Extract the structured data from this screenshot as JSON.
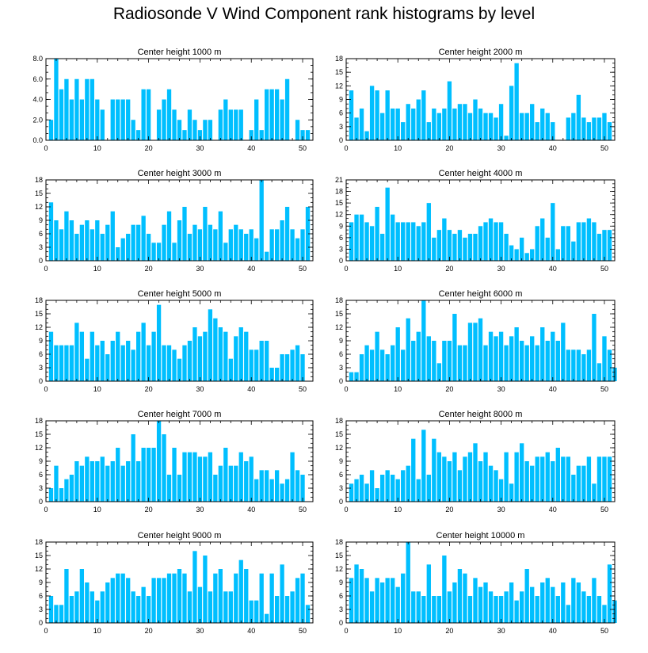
{
  "title": "Radiosonde V Wind Component rank histograms by level",
  "colors": {
    "bar": "#00BFFF",
    "axis": "#000000"
  },
  "chart_data": [
    {
      "type": "bar",
      "title": "Center height 1000 m",
      "xlim": [
        0,
        52
      ],
      "xticks": [
        "0",
        "10",
        "20",
        "30",
        "40",
        "50"
      ],
      "ylim": [
        0,
        8
      ],
      "yticks": [
        "0.0",
        "2.0",
        "4.0",
        "6.0",
        "8.0"
      ],
      "ytick_values": [
        0,
        2,
        4,
        6,
        8
      ],
      "values": [
        2,
        8,
        5,
        6,
        4,
        6,
        4,
        6,
        6,
        4,
        3,
        0,
        4,
        4,
        4,
        4,
        2,
        1,
        5,
        5,
        0,
        3,
        4,
        5,
        3,
        2,
        1,
        3,
        2,
        1,
        2,
        2,
        0,
        3,
        4,
        3,
        3,
        3,
        0,
        1,
        4,
        1,
        5,
        5,
        5,
        4,
        6,
        0,
        2,
        1,
        1
      ]
    },
    {
      "type": "bar",
      "title": "Center height 2000 m",
      "xlim": [
        0,
        52
      ],
      "xticks": [
        "0",
        "10",
        "20",
        "30",
        "40",
        "50"
      ],
      "ylim": [
        0,
        18
      ],
      "yticks": [
        "0",
        "3",
        "6",
        "9",
        "12",
        "15",
        "18"
      ],
      "ytick_values": [
        0,
        3,
        6,
        9,
        12,
        15,
        18
      ],
      "values": [
        11,
        5,
        7,
        2,
        12,
        11,
        6,
        11,
        7,
        7,
        4,
        8,
        7,
        9,
        11,
        4,
        7,
        6,
        7,
        13,
        7,
        8,
        8,
        6,
        9,
        7,
        6,
        6,
        5,
        8,
        1,
        12,
        17,
        6,
        6,
        8,
        4,
        7,
        6,
        4,
        0,
        0,
        5,
        6,
        10,
        5,
        4,
        5,
        5,
        6,
        4
      ]
    },
    {
      "type": "bar",
      "title": "Center height 3000 m",
      "xlim": [
        0,
        52
      ],
      "xticks": [
        "0",
        "10",
        "20",
        "30",
        "40",
        "50"
      ],
      "ylim": [
        0,
        18
      ],
      "yticks": [
        "0",
        "3",
        "6",
        "9",
        "12",
        "15",
        "18"
      ],
      "ytick_values": [
        0,
        3,
        6,
        9,
        12,
        15,
        18
      ],
      "values": [
        13,
        9,
        7,
        11,
        9,
        6,
        8,
        9,
        7,
        9,
        6,
        8,
        11,
        3,
        5,
        6,
        8,
        8,
        10,
        6,
        4,
        4,
        8,
        11,
        4,
        9,
        12,
        6,
        8,
        7,
        12,
        8,
        7,
        11,
        4,
        7,
        8,
        7,
        6,
        7,
        5,
        18,
        2,
        7,
        7,
        9,
        12,
        7,
        5,
        7,
        12
      ]
    },
    {
      "type": "bar",
      "title": "Center height 4000 m",
      "xlim": [
        0,
        52
      ],
      "xticks": [
        "0",
        "10",
        "20",
        "30",
        "40",
        "50"
      ],
      "ylim": [
        0,
        21
      ],
      "yticks": [
        "0",
        "3",
        "6",
        "9",
        "12",
        "15",
        "18",
        "21"
      ],
      "ytick_values": [
        0,
        3,
        6,
        9,
        12,
        15,
        18,
        21
      ],
      "values": [
        10,
        12,
        12,
        10,
        9,
        14,
        7,
        19,
        12,
        10,
        10,
        10,
        10,
        9,
        10,
        15,
        6,
        8,
        11,
        8,
        7,
        8,
        6,
        7,
        7,
        9,
        10,
        11,
        10,
        10,
        7,
        4,
        3,
        6,
        2,
        3,
        9,
        11,
        6,
        15,
        3,
        9,
        9,
        5,
        10,
        10,
        11,
        10,
        7,
        8,
        8
      ]
    },
    {
      "type": "bar",
      "title": "Center height 5000 m",
      "xlim": [
        0,
        52
      ],
      "xticks": [
        "0",
        "10",
        "20",
        "30",
        "40",
        "50"
      ],
      "ylim": [
        0,
        18
      ],
      "yticks": [
        "0",
        "3",
        "6",
        "9",
        "12",
        "15",
        "18"
      ],
      "ytick_values": [
        0,
        3,
        6,
        9,
        12,
        15,
        18
      ],
      "values": [
        11,
        8,
        8,
        8,
        8,
        13,
        11,
        5,
        11,
        8,
        9,
        6,
        9,
        11,
        8,
        9,
        7,
        11,
        13,
        8,
        11,
        17,
        8,
        8,
        7,
        5,
        8,
        9,
        12,
        10,
        11,
        16,
        14,
        12,
        11,
        5,
        10,
        12,
        11,
        7,
        7,
        9,
        9,
        3,
        3,
        6,
        6,
        7,
        8,
        6,
        0
      ]
    },
    {
      "type": "bar",
      "title": "Center height 6000 m",
      "xlim": [
        0,
        52
      ],
      "xticks": [
        "0",
        "10",
        "20",
        "30",
        "40",
        "50"
      ],
      "ylim": [
        0,
        18
      ],
      "yticks": [
        "0",
        "3",
        "6",
        "9",
        "12",
        "15",
        "18"
      ],
      "ytick_values": [
        0,
        3,
        6,
        9,
        12,
        15,
        18
      ],
      "values": [
        2,
        2,
        6,
        8,
        7,
        11,
        7,
        6,
        8,
        12,
        7,
        14,
        9,
        11,
        18,
        10,
        9,
        4,
        9,
        9,
        15,
        8,
        8,
        13,
        13,
        14,
        8,
        11,
        10,
        11,
        8,
        10,
        12,
        9,
        8,
        10,
        8,
        12,
        9,
        11,
        9,
        13,
        7,
        7,
        7,
        6,
        7,
        15,
        4,
        10,
        7,
        3
      ]
    },
    {
      "type": "bar",
      "title": "Center height 7000 m",
      "xlim": [
        0,
        52
      ],
      "xticks": [
        "0",
        "10",
        "20",
        "30",
        "40",
        "50"
      ],
      "ylim": [
        0,
        18
      ],
      "yticks": [
        "0",
        "3",
        "6",
        "9",
        "12",
        "15",
        "18"
      ],
      "ytick_values": [
        0,
        3,
        6,
        9,
        12,
        15,
        18
      ],
      "values": [
        3,
        8,
        3,
        5,
        6,
        9,
        8,
        10,
        9,
        9,
        10,
        8,
        9,
        12,
        8,
        9,
        15,
        9,
        12,
        12,
        12,
        18,
        15,
        6,
        12,
        6,
        11,
        11,
        11,
        10,
        10,
        11,
        6,
        8,
        12,
        8,
        8,
        11,
        9,
        10,
        5,
        7,
        7,
        5,
        7,
        4,
        5,
        11,
        7,
        6,
        0
      ]
    },
    {
      "type": "bar",
      "title": "Center height 8000 m",
      "xlim": [
        0,
        52
      ],
      "xticks": [
        "0",
        "10",
        "20",
        "30",
        "40",
        "50"
      ],
      "ylim": [
        0,
        18
      ],
      "yticks": [
        "0",
        "3",
        "6",
        "9",
        "12",
        "15",
        "18"
      ],
      "ytick_values": [
        0,
        3,
        6,
        9,
        12,
        15,
        18
      ],
      "values": [
        4,
        5,
        6,
        4,
        7,
        3,
        6,
        7,
        6,
        5,
        7,
        8,
        14,
        5,
        16,
        6,
        14,
        11,
        10,
        9,
        11,
        7,
        10,
        11,
        13,
        9,
        11,
        8,
        7,
        5,
        11,
        4,
        11,
        13,
        9,
        8,
        10,
        10,
        11,
        9,
        12,
        10,
        10,
        6,
        8,
        8,
        10,
        4,
        10,
        10,
        10
      ]
    },
    {
      "type": "bar",
      "title": "Center height 9000 m",
      "xlim": [
        0,
        52
      ],
      "xticks": [
        "0",
        "10",
        "20",
        "30",
        "40",
        "50"
      ],
      "ylim": [
        0,
        18
      ],
      "yticks": [
        "0",
        "3",
        "6",
        "9",
        "12",
        "15",
        "18"
      ],
      "ytick_values": [
        0,
        3,
        6,
        9,
        12,
        15,
        18
      ],
      "values": [
        6,
        4,
        4,
        12,
        6,
        7,
        12,
        9,
        7,
        5,
        7,
        9,
        10,
        11,
        11,
        10,
        7,
        6,
        8,
        6,
        10,
        10,
        10,
        11,
        11,
        12,
        11,
        7,
        16,
        8,
        15,
        7,
        11,
        12,
        7,
        7,
        11,
        14,
        12,
        5,
        5,
        11,
        2,
        11,
        6,
        13,
        6,
        7,
        10,
        11,
        4
      ]
    },
    {
      "type": "bar",
      "title": "Center height 10000 m",
      "xlim": [
        0,
        52
      ],
      "xticks": [
        "0",
        "10",
        "20",
        "30",
        "40",
        "50"
      ],
      "ylim": [
        0,
        18
      ],
      "yticks": [
        "0",
        "3",
        "6",
        "9",
        "12",
        "15",
        "18"
      ],
      "ytick_values": [
        0,
        3,
        6,
        9,
        12,
        15,
        18
      ],
      "values": [
        10,
        13,
        12,
        10,
        7,
        10,
        9,
        10,
        10,
        8,
        11,
        18,
        7,
        7,
        6,
        13,
        6,
        6,
        15,
        7,
        9,
        12,
        11,
        6,
        10,
        8,
        9,
        7,
        6,
        6,
        7,
        9,
        5,
        7,
        12,
        8,
        6,
        9,
        10,
        8,
        6,
        9,
        4,
        10,
        9,
        7,
        6,
        10,
        6,
        4,
        13,
        5
      ]
    }
  ]
}
